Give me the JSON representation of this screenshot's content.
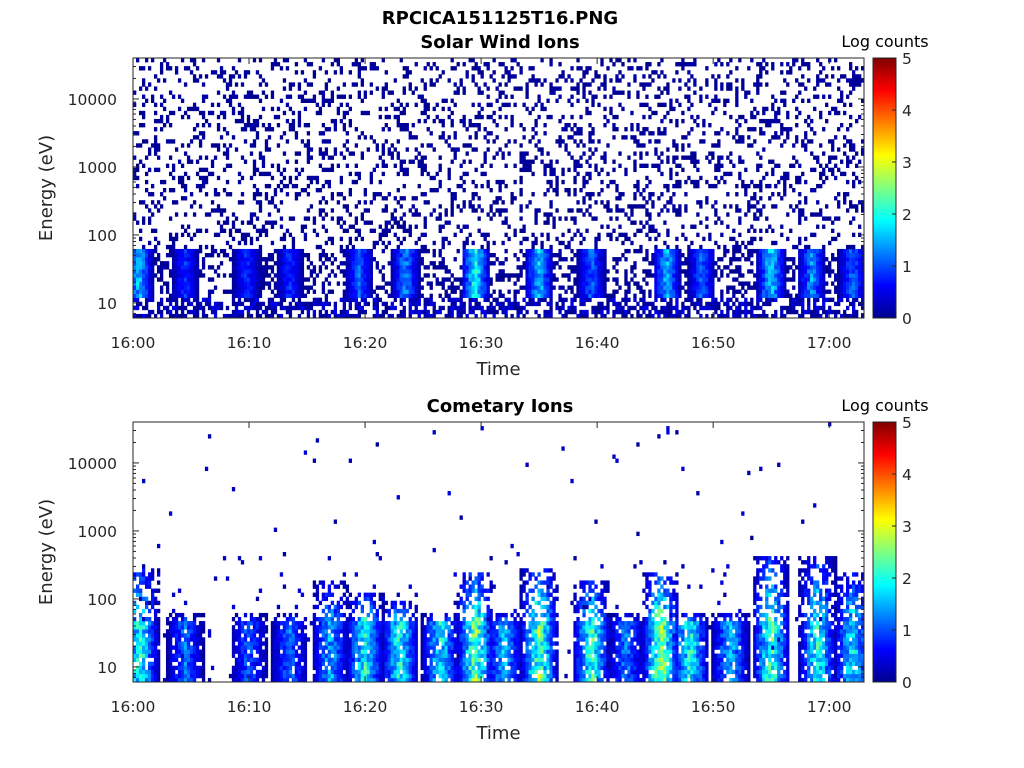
{
  "figure": {
    "title": "RPCICA151125T16.PNG"
  },
  "chart_data": [
    {
      "type": "heatmap",
      "title": "Solar Wind Ions",
      "xlabel": "Time",
      "ylabel": "Energy (eV)",
      "x_ticks": [
        "16:00",
        "16:10",
        "16:20",
        "16:30",
        "16:40",
        "16:50",
        "17:00"
      ],
      "y_ticks": [
        "10",
        "100",
        "1000",
        "10000"
      ],
      "y_scale": "log",
      "ylim": [
        6,
        40000
      ],
      "xlim": [
        "16:00",
        "17:03"
      ],
      "colorbar": {
        "label": "Log counts",
        "ticks": [
          "0",
          "1",
          "2",
          "3",
          "4",
          "5"
        ],
        "range": [
          0,
          5
        ],
        "colormap": "jet"
      },
      "pattern": {
        "background_level": 0.0,
        "noise_density": 0.22,
        "low_energy_bursts": [
          {
            "t": 0.5,
            "level": 1.8
          },
          {
            "t": 4.5,
            "level": 1.0
          },
          {
            "t": 9.8,
            "level": 1.0
          },
          {
            "t": 13.5,
            "level": 1.0
          },
          {
            "t": 19.5,
            "level": 1.3
          },
          {
            "t": 23.5,
            "level": 1.5
          },
          {
            "t": 29.5,
            "level": 2.3
          },
          {
            "t": 35,
            "level": 1.9
          },
          {
            "t": 39.5,
            "level": 1.3
          },
          {
            "t": 46,
            "level": 1.8
          },
          {
            "t": 49,
            "level": 1.3
          },
          {
            "t": 55,
            "level": 2.0
          },
          {
            "t": 58.5,
            "level": 1.6
          },
          {
            "t": 62,
            "level": 1.3
          }
        ]
      }
    },
    {
      "type": "heatmap",
      "title": "Cometary Ions",
      "xlabel": "Time",
      "ylabel": "Energy (eV)",
      "x_ticks": [
        "16:00",
        "16:10",
        "16:20",
        "16:30",
        "16:40",
        "16:50",
        "17:00"
      ],
      "y_ticks": [
        "10",
        "100",
        "1000",
        "10000"
      ],
      "y_scale": "log",
      "ylim": [
        6,
        40000
      ],
      "xlim": [
        "16:00",
        "17:03"
      ],
      "colorbar": {
        "label": "Log counts",
        "ticks": [
          "0",
          "1",
          "2",
          "3",
          "4",
          "5"
        ],
        "range": [
          0,
          5
        ],
        "colormap": "jet"
      },
      "pattern": {
        "noise_density": 0.015,
        "bursts": [
          {
            "t": 0.6,
            "level": 2.4,
            "top": 300
          },
          {
            "t": 4.5,
            "level": 1.4,
            "top": 60
          },
          {
            "t": 10,
            "level": 1.3,
            "top": 60
          },
          {
            "t": 13.5,
            "level": 1.4,
            "top": 60
          },
          {
            "t": 17,
            "level": 1.8,
            "top": 180
          },
          {
            "t": 20,
            "level": 2.4,
            "top": 120
          },
          {
            "t": 23,
            "level": 2.4,
            "top": 90
          },
          {
            "t": 26.5,
            "level": 2.2,
            "top": 60
          },
          {
            "t": 29.5,
            "level": 3.0,
            "top": 250
          },
          {
            "t": 32,
            "level": 1.9,
            "top": 60
          },
          {
            "t": 35,
            "level": 2.9,
            "top": 300
          },
          {
            "t": 39.5,
            "level": 2.6,
            "top": 200
          },
          {
            "t": 42.5,
            "level": 1.5,
            "top": 60
          },
          {
            "t": 45.5,
            "level": 3.1,
            "top": 250
          },
          {
            "t": 48,
            "level": 2.4,
            "top": 60
          },
          {
            "t": 51.5,
            "level": 1.9,
            "top": 60
          },
          {
            "t": 55,
            "level": 2.7,
            "top": 400
          },
          {
            "t": 59,
            "level": 2.4,
            "top": 400
          },
          {
            "t": 62,
            "level": 2.2,
            "top": 250
          }
        ]
      }
    }
  ]
}
